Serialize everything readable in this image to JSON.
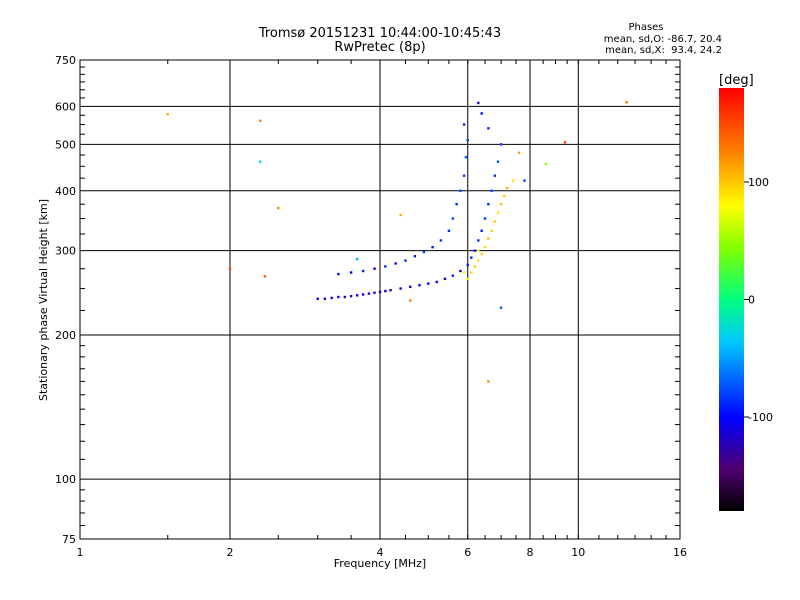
{
  "header": {
    "title_line1": "Tromsø 20151231 10:44:00-10:45:43",
    "title_line2": "RwPretec (8p)"
  },
  "stats": {
    "heading": "Phases",
    "line_o": "mean, sd,O: -86.7, 20.4",
    "line_x": "mean, sd,X:  93.4, 24.2"
  },
  "colorbar": {
    "unit": "[deg]",
    "ticks": [
      {
        "value": 100,
        "label": "100"
      },
      {
        "value": 0,
        "label": "0"
      },
      {
        "value": -100,
        "label": "-100"
      }
    ],
    "range": [
      -180,
      180
    ]
  },
  "chart_data": {
    "type": "scatter",
    "xlabel": "Frequency [MHz]",
    "ylabel": "Stationary phase Virtual Height [km]",
    "xscale": "log",
    "yscale": "log",
    "xlim": [
      1,
      16
    ],
    "ylim": [
      75,
      750
    ],
    "xticks": [
      {
        "value": 1,
        "label": "1"
      },
      {
        "value": 2,
        "label": "2"
      },
      {
        "value": 4,
        "label": "4"
      },
      {
        "value": 6,
        "label": "6"
      },
      {
        "value": 8,
        "label": "8"
      },
      {
        "value": 10,
        "label": "10"
      },
      {
        "value": 16,
        "label": "16"
      }
    ],
    "yticks": [
      {
        "value": 75,
        "label": "75"
      },
      {
        "value": 100,
        "label": "100"
      },
      {
        "value": 200,
        "label": "200"
      },
      {
        "value": 300,
        "label": "300"
      },
      {
        "value": 400,
        "label": "400"
      },
      {
        "value": 500,
        "label": "500"
      },
      {
        "value": 600,
        "label": "600"
      },
      {
        "value": 750,
        "label": "750"
      }
    ],
    "grid": true,
    "color_by": "phase (deg)",
    "points": [
      {
        "f": 3.0,
        "h": 238,
        "p": -110
      },
      {
        "f": 3.1,
        "h": 238,
        "p": -115
      },
      {
        "f": 3.2,
        "h": 239,
        "p": -120
      },
      {
        "f": 3.3,
        "h": 240,
        "p": -110
      },
      {
        "f": 3.4,
        "h": 240,
        "p": -125
      },
      {
        "f": 3.5,
        "h": 241,
        "p": -112
      },
      {
        "f": 3.6,
        "h": 242,
        "p": -118
      },
      {
        "f": 3.7,
        "h": 243,
        "p": -105
      },
      {
        "f": 3.8,
        "h": 244,
        "p": -115
      },
      {
        "f": 3.9,
        "h": 245,
        "p": -108
      },
      {
        "f": 4.0,
        "h": 246,
        "p": -112
      },
      {
        "f": 4.1,
        "h": 247,
        "p": -100
      },
      {
        "f": 4.2,
        "h": 248,
        "p": -115
      },
      {
        "f": 4.4,
        "h": 250,
        "p": -105
      },
      {
        "f": 4.6,
        "h": 252,
        "p": -110
      },
      {
        "f": 4.8,
        "h": 254,
        "p": -98
      },
      {
        "f": 5.0,
        "h": 256,
        "p": -108
      },
      {
        "f": 5.2,
        "h": 258,
        "p": -95
      },
      {
        "f": 5.4,
        "h": 262,
        "p": -102
      },
      {
        "f": 5.6,
        "h": 266,
        "p": -90
      },
      {
        "f": 5.8,
        "h": 272,
        "p": -100
      },
      {
        "f": 6.0,
        "h": 280,
        "p": -92
      },
      {
        "f": 6.1,
        "h": 290,
        "p": -88
      },
      {
        "f": 6.2,
        "h": 300,
        "p": -95
      },
      {
        "f": 6.3,
        "h": 315,
        "p": -85
      },
      {
        "f": 6.4,
        "h": 330,
        "p": -92
      },
      {
        "f": 6.5,
        "h": 350,
        "p": -80
      },
      {
        "f": 6.6,
        "h": 375,
        "p": -88
      },
      {
        "f": 6.7,
        "h": 400,
        "p": -78
      },
      {
        "f": 6.8,
        "h": 430,
        "p": -85
      },
      {
        "f": 6.9,
        "h": 460,
        "p": -75
      },
      {
        "f": 7.0,
        "h": 500,
        "p": -82
      },
      {
        "f": 6.6,
        "h": 540,
        "p": -90
      },
      {
        "f": 6.4,
        "h": 580,
        "p": -95
      },
      {
        "f": 6.3,
        "h": 610,
        "p": -100
      },
      {
        "f": 3.3,
        "h": 268,
        "p": -95
      },
      {
        "f": 3.5,
        "h": 270,
        "p": -100
      },
      {
        "f": 3.7,
        "h": 272,
        "p": -90
      },
      {
        "f": 3.9,
        "h": 275,
        "p": -98
      },
      {
        "f": 4.1,
        "h": 278,
        "p": -88
      },
      {
        "f": 4.3,
        "h": 282,
        "p": -95
      },
      {
        "f": 4.5,
        "h": 286,
        "p": -85
      },
      {
        "f": 4.7,
        "h": 292,
        "p": -92
      },
      {
        "f": 4.9,
        "h": 298,
        "p": -82
      },
      {
        "f": 5.1,
        "h": 305,
        "p": -90
      },
      {
        "f": 5.3,
        "h": 315,
        "p": -80
      },
      {
        "f": 5.5,
        "h": 330,
        "p": -88
      },
      {
        "f": 5.6,
        "h": 350,
        "p": -78
      },
      {
        "f": 5.7,
        "h": 375,
        "p": -85
      },
      {
        "f": 5.8,
        "h": 400,
        "p": -75
      },
      {
        "f": 5.9,
        "h": 430,
        "p": -82
      },
      {
        "f": 5.95,
        "h": 470,
        "p": -72
      },
      {
        "f": 6.0,
        "h": 510,
        "p": -80
      },
      {
        "f": 5.9,
        "h": 550,
        "p": -90
      },
      {
        "f": 6.0,
        "h": 262,
        "p": 90
      },
      {
        "f": 6.1,
        "h": 270,
        "p": 95
      },
      {
        "f": 6.2,
        "h": 278,
        "p": 100
      },
      {
        "f": 6.3,
        "h": 286,
        "p": 88
      },
      {
        "f": 6.4,
        "h": 295,
        "p": 98
      },
      {
        "f": 6.5,
        "h": 305,
        "p": 92
      },
      {
        "f": 6.6,
        "h": 318,
        "p": 105
      },
      {
        "f": 6.7,
        "h": 330,
        "p": 95
      },
      {
        "f": 6.8,
        "h": 345,
        "p": 100
      },
      {
        "f": 6.9,
        "h": 360,
        "p": 90
      },
      {
        "f": 7.0,
        "h": 375,
        "p": 102
      },
      {
        "f": 7.1,
        "h": 390,
        "p": 96
      },
      {
        "f": 7.2,
        "h": 405,
        "p": 108
      },
      {
        "f": 5.9,
        "h": 270,
        "p": 70
      },
      {
        "f": 6.3,
        "h": 300,
        "p": 75
      },
      {
        "f": 1.5,
        "h": 578,
        "p": 110
      },
      {
        "f": 2.3,
        "h": 560,
        "p": 125
      },
      {
        "f": 2.3,
        "h": 460,
        "p": -30
      },
      {
        "f": 2.5,
        "h": 368,
        "p": 120
      },
      {
        "f": 2.35,
        "h": 265,
        "p": 140
      },
      {
        "f": 2.0,
        "h": 275,
        "p": 150
      },
      {
        "f": 9.4,
        "h": 505,
        "p": 150
      },
      {
        "f": 8.6,
        "h": 455,
        "p": 50
      },
      {
        "f": 12.5,
        "h": 612,
        "p": 130
      },
      {
        "f": 7.0,
        "h": 228,
        "p": -70
      },
      {
        "f": 6.6,
        "h": 160,
        "p": 120
      },
      {
        "f": 4.6,
        "h": 236,
        "p": 125
      },
      {
        "f": 4.4,
        "h": 356,
        "p": 110
      },
      {
        "f": 3.6,
        "h": 288,
        "p": -40
      },
      {
        "f": 7.4,
        "h": 420,
        "p": 90
      },
      {
        "f": 7.8,
        "h": 420,
        "p": -80
      },
      {
        "f": 7.6,
        "h": 480,
        "p": 110
      }
    ]
  }
}
